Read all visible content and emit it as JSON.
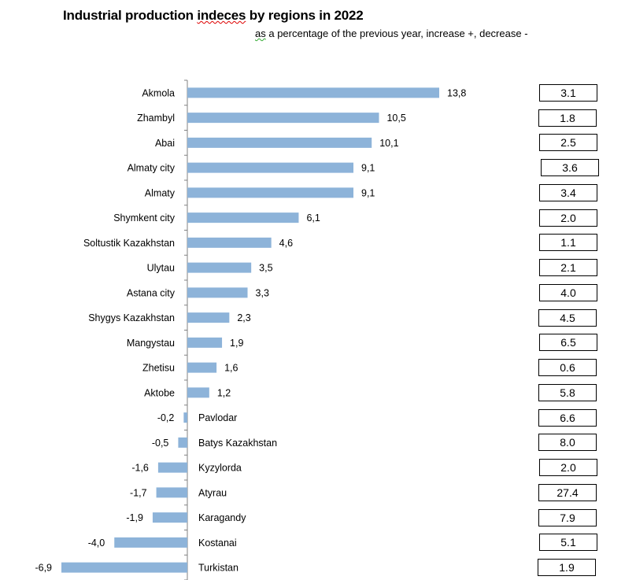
{
  "chart_data": {
    "type": "bar",
    "orientation": "horizontal",
    "title": "Industrial production indeces by regions in 2022",
    "subtitle": "as a percentage of the previous year, increase +, decrease -",
    "categories": [
      "Akmola",
      "Zhambyl",
      "Abai",
      "Almaty city",
      "Almaty",
      "Shymkent city",
      "Soltustik Kazakhstan",
      "Ulytau",
      "Astana city",
      "Shygys Kazakhstan",
      "Mangystau",
      "Zhetisu",
      "Aktobe",
      "Pavlodar",
      "Batys Kazakhstan",
      "Kyzylorda",
      "Atyrau",
      "Karagandy",
      "Kostanai",
      "Turkistan"
    ],
    "values": [
      13.8,
      10.5,
      10.1,
      9.1,
      9.1,
      6.1,
      4.6,
      3.5,
      3.3,
      2.3,
      1.9,
      1.6,
      1.2,
      -0.2,
      -0.5,
      -1.6,
      -1.7,
      -1.9,
      -4.0,
      -6.9
    ],
    "value_labels": [
      "13,8",
      "10,5",
      "10,1",
      "9,1",
      "9,1",
      "6,1",
      "4,6",
      "3,5",
      "3,3",
      "2,3",
      "1,9",
      "1,6",
      "1,2",
      "-0,2",
      "-0,5",
      "-1,6",
      "-1,7",
      "-1,9",
      "-4,0",
      "-6,9"
    ],
    "side_boxes": [
      "3.1",
      "1.8",
      "2.5",
      "3.6",
      "3.4",
      "2.0",
      "1.1",
      "2.1",
      "4.0",
      "4.5",
      "6.5",
      "0.6",
      "5.8",
      "6.6",
      "8.0",
      "2.0",
      "27.4",
      "7.9",
      "5.1",
      "1.9"
    ],
    "xlim": [
      -6.9,
      13.8
    ],
    "grid": false,
    "legend": "none",
    "bar_color": "#8db3d9",
    "axis_color": "#808080"
  }
}
